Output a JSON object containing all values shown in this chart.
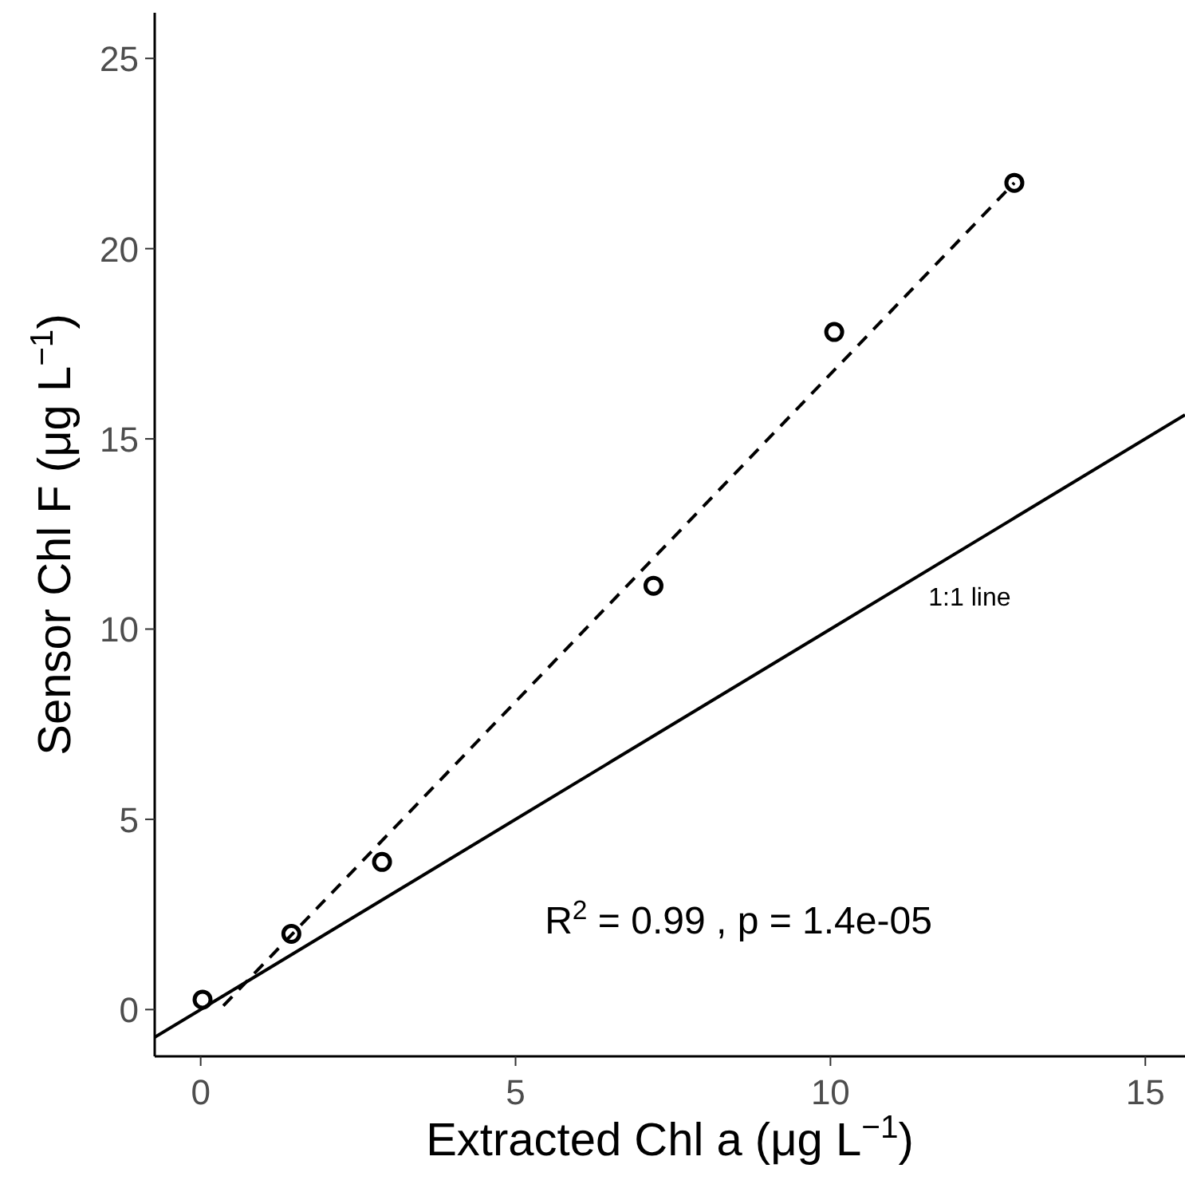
{
  "chart_data": {
    "type": "scatter",
    "xlabel": "Extracted Chl a (μg L$^{−1}$)",
    "ylabel": "Sensor Chl F (μg L$^{−1}$)",
    "x": [
      0.03,
      1.44,
      2.88,
      7.19,
      10.06,
      12.92
    ],
    "series": [
      {
        "color": "#000000",
        "marker": "circle",
        "values": [
          0.26,
          1.99,
          3.88,
          11.14,
          17.81,
          21.73
        ]
      },
      {
        "type": "line",
        "color": "#000000",
        "line_style": "dashed",
        "x": [
          0.36,
          12.92
        ],
        "values": [
          0.1,
          21.73
        ]
      },
      {
        "type": "line",
        "name": "1:1 line",
        "color": "#000000",
        "line_style": "solid",
        "x": [
          -0.73,
          15.63
        ],
        "values": [
          -0.73,
          15.63
        ]
      }
    ],
    "annotations": [
      "R$^{2}$ = 0.99 , p = 1.4e-05"
    ],
    "xlim": [
      -0.73,
      15.63
    ],
    "ylim": [
      -1.23,
      26.2
    ],
    "xticks": [
      0,
      5,
      10,
      15
    ],
    "yticks": [
      0,
      5,
      10,
      15,
      20,
      25
    ]
  }
}
